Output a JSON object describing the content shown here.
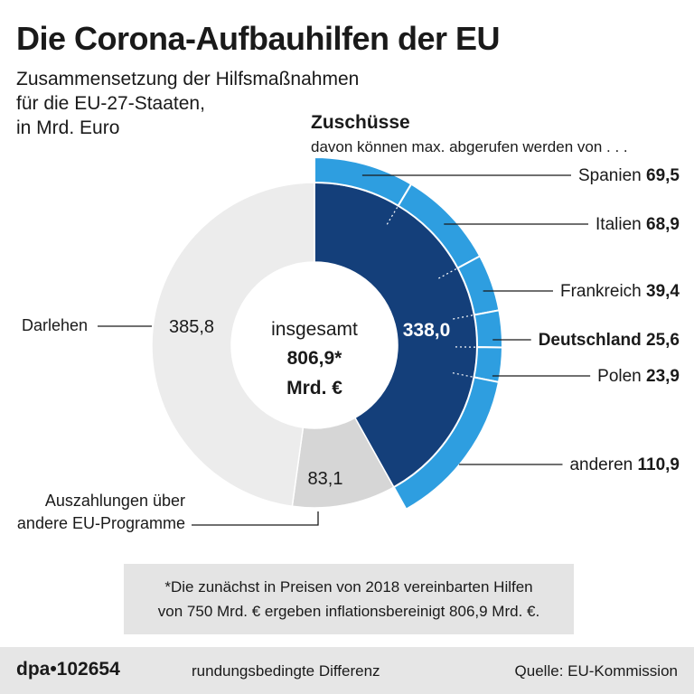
{
  "header": {
    "title": "Die Corona-Aufbauhilfen der EU",
    "subtitle_lines": [
      "Zusammensetzung der Hilfsmaßnahmen",
      "für die EU-27-Staaten,",
      "in Mrd. Euro"
    ]
  },
  "chart_data": {
    "type": "donut",
    "title": "Die Corona-Aufbauhilfen der EU",
    "unit": "Mrd. Euro",
    "center_label": [
      "insgesamt",
      "806,9*",
      "Mrd. €"
    ],
    "total": 806.9,
    "segments": [
      {
        "name": "Zuschüsse",
        "label": "Zuschüsse",
        "value": 338.0,
        "value_text": "338,0"
      },
      {
        "name": "Auszahlungen über andere EU-Programme",
        "label": "Auszahlungen über andere EU-Programme",
        "label_lines": [
          "Auszahlungen über",
          "andere EU-Programme"
        ],
        "value": 83.1,
        "value_text": "83,1"
      },
      {
        "name": "Darlehen",
        "label": "Darlehen",
        "value": 385.8,
        "value_text": "385,8"
      }
    ],
    "grants_breakdown": {
      "title": "Zuschüsse",
      "subtitle": "davon können max. abgerufen werden von . . .",
      "items": [
        {
          "country": "Spanien",
          "value": 69.5,
          "value_text": "69,5",
          "bold": false
        },
        {
          "country": "Italien",
          "value": 68.9,
          "value_text": "68,9",
          "bold": false
        },
        {
          "country": "Frankreich",
          "value": 39.4,
          "value_text": "39,4",
          "bold": false
        },
        {
          "country": "Deutschland",
          "value": 25.6,
          "value_text": "25,6",
          "bold": true
        },
        {
          "country": "Polen",
          "value": 23.9,
          "value_text": "23,9",
          "bold": false
        },
        {
          "country": "anderen",
          "value": 110.9,
          "value_text": "110,9",
          "bold": false
        }
      ]
    }
  },
  "colors": {
    "grants": "#143f7a",
    "grants_outer": "#2e9ee0",
    "loans": "#ececec",
    "other_programs": "#d6d6d6",
    "text": "#1a1a1a",
    "line": "#1a1a1a"
  },
  "footnote": {
    "lines": [
      "*Die zunächst in Preisen von 2018 vereinbarten Hilfen",
      "von 750 Mrd. € ergeben inflationsbereinigt 806,9 Mrd. €."
    ]
  },
  "footer": {
    "logo": "dpa•102654",
    "note": "rundungsbedingte Differenz",
    "source": "Quelle: EU-Kommission"
  }
}
